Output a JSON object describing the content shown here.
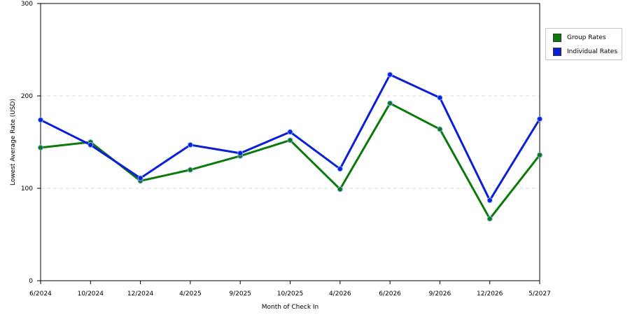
{
  "chart_data": {
    "type": "line",
    "title": "",
    "xlabel": "Month of Check In",
    "ylabel": "Lowest Average Rate (USD)",
    "categories": [
      "6/2024",
      "10/2024",
      "12/2024",
      "4/2025",
      "9/2025",
      "10/2025",
      "4/2026",
      "6/2026",
      "9/2026",
      "12/2026",
      "5/2027"
    ],
    "ylim": [
      0,
      300
    ],
    "yticks": [
      0,
      100,
      200,
      300
    ],
    "grid": "horizontal dashed",
    "legend_position": "right",
    "series": [
      {
        "name": "Group Rates",
        "color": "#0b7a0b",
        "values": [
          144,
          150,
          108,
          120,
          135,
          152,
          99,
          192,
          164,
          67,
          136
        ]
      },
      {
        "name": "Individual Rates",
        "color": "#0a1fd6",
        "values": [
          174,
          147,
          111,
          147,
          138,
          161,
          121,
          223,
          198,
          87,
          175
        ]
      }
    ]
  }
}
